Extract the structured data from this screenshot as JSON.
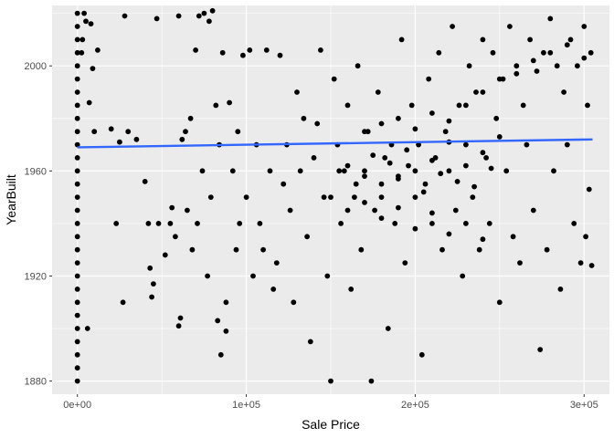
{
  "chart_data": {
    "type": "scatter",
    "title": "",
    "xlabel": "Sale Price",
    "ylabel": "YearBuilt",
    "xlim": [
      -15000,
      315000
    ],
    "ylim": [
      1875,
      2023
    ],
    "x_ticks": [
      {
        "value": 0,
        "label": "0e+00"
      },
      {
        "value": 100000,
        "label": "1e+05"
      },
      {
        "value": 200000,
        "label": "2e+05"
      },
      {
        "value": 300000,
        "label": "3e+05"
      }
    ],
    "y_ticks": [
      {
        "value": 1880,
        "label": "1880"
      },
      {
        "value": 1920,
        "label": "1920"
      },
      {
        "value": 1960,
        "label": "1960"
      },
      {
        "value": 2000,
        "label": "2000"
      }
    ],
    "grid": true,
    "legend": "none",
    "point_color": "#000000",
    "panel_background": "#ebebeb",
    "trend_line": {
      "color": "#3366ff",
      "points": [
        [
          0,
          1969
        ],
        [
          305000,
          1972
        ]
      ]
    },
    "points": [
      [
        0,
        1880
      ],
      [
        0,
        1885
      ],
      [
        0,
        1890
      ],
      [
        0,
        1895
      ],
      [
        0,
        1900
      ],
      [
        0,
        1905
      ],
      [
        0,
        1910
      ],
      [
        0,
        1915
      ],
      [
        0,
        1920
      ],
      [
        0,
        1925
      ],
      [
        0,
        1930
      ],
      [
        0,
        1935
      ],
      [
        0,
        1940
      ],
      [
        0,
        1945
      ],
      [
        0,
        1950
      ],
      [
        0,
        1955
      ],
      [
        0,
        1960
      ],
      [
        0,
        1965
      ],
      [
        0,
        1970
      ],
      [
        0,
        1975
      ],
      [
        0,
        1980
      ],
      [
        0,
        1985
      ],
      [
        0,
        1990
      ],
      [
        0,
        1995
      ],
      [
        0,
        2000
      ],
      [
        0,
        2005
      ],
      [
        0,
        2010
      ],
      [
        0,
        2015
      ],
      [
        0,
        2020
      ],
      [
        2500,
        2005
      ],
      [
        5000,
        2017
      ],
      [
        7000,
        1986
      ],
      [
        10000,
        1975
      ],
      [
        12000,
        2006
      ],
      [
        3000,
        2010
      ],
      [
        4000,
        2020
      ],
      [
        6000,
        1900
      ],
      [
        9000,
        1999
      ],
      [
        8000,
        2016
      ],
      [
        20000,
        1976
      ],
      [
        25000,
        1971
      ],
      [
        30000,
        1975
      ],
      [
        35000,
        1972
      ],
      [
        27000,
        1910
      ],
      [
        23000,
        1940
      ],
      [
        28000,
        2019
      ],
      [
        40000,
        1956
      ],
      [
        42000,
        1940
      ],
      [
        43000,
        1923
      ],
      [
        45000,
        1917
      ],
      [
        44000,
        1912
      ],
      [
        48000,
        1940
      ],
      [
        52000,
        1928
      ],
      [
        47000,
        2018
      ],
      [
        55000,
        1940
      ],
      [
        60000,
        2019
      ],
      [
        62000,
        1972
      ],
      [
        64000,
        1975
      ],
      [
        67000,
        1980
      ],
      [
        70000,
        2006
      ],
      [
        72000,
        2019
      ],
      [
        75000,
        2020
      ],
      [
        78000,
        2017
      ],
      [
        80000,
        2021
      ],
      [
        82000,
        1985
      ],
      [
        84000,
        1970
      ],
      [
        86000,
        2005
      ],
      [
        65000,
        1945
      ],
      [
        68000,
        1930
      ],
      [
        71000,
        1940
      ],
      [
        74000,
        1960
      ],
      [
        77000,
        1920
      ],
      [
        79000,
        1950
      ],
      [
        83000,
        1903
      ],
      [
        85000,
        1890
      ],
      [
        88000,
        1910
      ],
      [
        90000,
        1986
      ],
      [
        92000,
        1960
      ],
      [
        94000,
        1930
      ],
      [
        96000,
        1940
      ],
      [
        98000,
        2004
      ],
      [
        60000,
        1901
      ],
      [
        61000,
        1904
      ],
      [
        58000,
        1935
      ],
      [
        56000,
        1946
      ],
      [
        88000,
        1899
      ],
      [
        95000,
        1975
      ],
      [
        100000,
        1950
      ],
      [
        102000,
        2006
      ],
      [
        104000,
        1920
      ],
      [
        106000,
        1970
      ],
      [
        108000,
        1940
      ],
      [
        110000,
        1930
      ],
      [
        112000,
        2006
      ],
      [
        114000,
        1960
      ],
      [
        116000,
        1915
      ],
      [
        118000,
        1925
      ],
      [
        120000,
        2004
      ],
      [
        122000,
        1955
      ],
      [
        124000,
        1970
      ],
      [
        126000,
        1945
      ],
      [
        128000,
        1910
      ],
      [
        130000,
        1990
      ],
      [
        132000,
        1960
      ],
      [
        134000,
        1980
      ],
      [
        136000,
        1935
      ],
      [
        138000,
        1895
      ],
      [
        140000,
        1965
      ],
      [
        142000,
        1978
      ],
      [
        144000,
        2006
      ],
      [
        146000,
        1950
      ],
      [
        148000,
        1920
      ],
      [
        150000,
        1880
      ],
      [
        152000,
        1995
      ],
      [
        154000,
        1970
      ],
      [
        156000,
        1940
      ],
      [
        158000,
        1960
      ],
      [
        160000,
        1985
      ],
      [
        162000,
        1915
      ],
      [
        164000,
        1950
      ],
      [
        166000,
        2000
      ],
      [
        168000,
        1930
      ],
      [
        170000,
        1960
      ],
      [
        172000,
        1975
      ],
      [
        174000,
        1880
      ],
      [
        176000,
        1945
      ],
      [
        178000,
        1990
      ],
      [
        180000,
        1955
      ],
      [
        182000,
        1965
      ],
      [
        184000,
        1900
      ],
      [
        186000,
        1970
      ],
      [
        188000,
        1940
      ],
      [
        190000,
        1958
      ],
      [
        192000,
        2010
      ],
      [
        194000,
        1925
      ],
      [
        196000,
        1962
      ],
      [
        198000,
        1985
      ],
      [
        200000,
        1950
      ],
      [
        202000,
        1970
      ],
      [
        204000,
        1890
      ],
      [
        206000,
        1955
      ],
      [
        208000,
        1995
      ],
      [
        210000,
        1940
      ],
      [
        212000,
        1965
      ],
      [
        214000,
        2005
      ],
      [
        216000,
        1930
      ],
      [
        218000,
        1975
      ],
      [
        220000,
        1960
      ],
      [
        222000,
        2015
      ],
      [
        224000,
        1945
      ],
      [
        226000,
        1985
      ],
      [
        228000,
        1920
      ],
      [
        230000,
        1970
      ],
      [
        232000,
        2000
      ],
      [
        234000,
        1950
      ],
      [
        236000,
        1990
      ],
      [
        238000,
        1930
      ],
      [
        240000,
        2010
      ],
      [
        242000,
        1965
      ],
      [
        244000,
        1940
      ],
      [
        246000,
        2005
      ],
      [
        248000,
        1980
      ],
      [
        250000,
        1910
      ],
      [
        252000,
        1995
      ],
      [
        254000,
        1960
      ],
      [
        256000,
        2015
      ],
      [
        258000,
        1935
      ],
      [
        260000,
        2000
      ],
      [
        262000,
        1925
      ],
      [
        264000,
        1985
      ],
      [
        266000,
        1970
      ],
      [
        268000,
        2010
      ],
      [
        270000,
        1945
      ],
      [
        272000,
        1998
      ],
      [
        274000,
        1892
      ],
      [
        276000,
        2005
      ],
      [
        278000,
        1930
      ],
      [
        280000,
        2018
      ],
      [
        282000,
        1960
      ],
      [
        284000,
        2000
      ],
      [
        286000,
        1915
      ],
      [
        288000,
        1990
      ],
      [
        290000,
        1970
      ],
      [
        292000,
        2010
      ],
      [
        294000,
        1940
      ],
      [
        296000,
        2000
      ],
      [
        298000,
        1925
      ],
      [
        300000,
        2015
      ],
      [
        302000,
        1985
      ],
      [
        303000,
        1953
      ],
      [
        304000,
        2005
      ],
      [
        304500,
        1924
      ],
      [
        301000,
        1935
      ],
      [
        155000,
        1960
      ],
      [
        160000,
        1962
      ],
      [
        165000,
        1955
      ],
      [
        170000,
        1958
      ],
      [
        175000,
        1966
      ],
      [
        180000,
        1950
      ],
      [
        185000,
        1963
      ],
      [
        190000,
        1957
      ],
      [
        195000,
        1968
      ],
      [
        200000,
        1960
      ],
      [
        205000,
        1952
      ],
      [
        210000,
        1964
      ],
      [
        215000,
        1959
      ],
      [
        220000,
        1971
      ],
      [
        225000,
        1956
      ],
      [
        230000,
        1962
      ],
      [
        235000,
        1954
      ],
      [
        240000,
        1967
      ],
      [
        245000,
        1961
      ],
      [
        250000,
        1973
      ],
      [
        170000,
        1975
      ],
      [
        180000,
        1978
      ],
      [
        190000,
        1980
      ],
      [
        200000,
        1976
      ],
      [
        210000,
        1982
      ],
      [
        220000,
        1979
      ],
      [
        230000,
        1985
      ],
      [
        240000,
        1990
      ],
      [
        250000,
        1995
      ],
      [
        260000,
        1997
      ],
      [
        270000,
        2002
      ],
      [
        280000,
        2005
      ],
      [
        290000,
        2008
      ],
      [
        300000,
        2003
      ],
      [
        150000,
        1950
      ],
      [
        160000,
        1945
      ],
      [
        170000,
        1948
      ],
      [
        180000,
        1942
      ],
      [
        190000,
        1946
      ],
      [
        200000,
        1938
      ],
      [
        210000,
        1944
      ],
      [
        220000,
        1936
      ],
      [
        230000,
        1940
      ],
      [
        240000,
        1934
      ]
    ]
  }
}
